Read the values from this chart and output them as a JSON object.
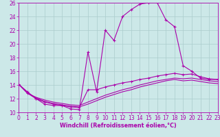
{
  "xlabel": "Windchill (Refroidissement éolien,°C)",
  "bg_color": "#cce8e8",
  "line_color": "#aa00aa",
  "grid_color": "#aacccc",
  "xmin": 0,
  "xmax": 23,
  "ymin": 10,
  "ymax": 26,
  "yticks": [
    10,
    12,
    14,
    16,
    18,
    20,
    22,
    24,
    26
  ],
  "xticks": [
    0,
    1,
    2,
    3,
    4,
    5,
    6,
    7,
    8,
    9,
    10,
    11,
    12,
    13,
    14,
    15,
    16,
    17,
    18,
    19,
    20,
    21,
    22,
    23
  ],
  "series1_x": [
    0,
    1,
    2,
    3,
    4,
    5,
    6,
    7,
    8,
    9,
    10,
    11,
    12,
    13,
    14,
    15,
    16,
    17,
    18,
    19,
    20,
    21,
    22,
    23
  ],
  "series1_y": [
    14.1,
    13.0,
    12.0,
    11.2,
    11.0,
    11.0,
    10.5,
    10.4,
    18.8,
    13.0,
    22.0,
    20.5,
    24.0,
    25.0,
    25.8,
    26.0,
    26.0,
    23.5,
    22.5,
    16.8,
    16.0,
    15.0,
    14.8,
    14.8
  ],
  "series2_x": [
    0,
    1,
    2,
    3,
    4,
    5,
    6,
    7,
    8,
    9,
    10,
    11,
    12,
    13,
    14,
    15,
    16,
    17,
    18,
    19,
    20,
    21,
    22,
    23
  ],
  "series2_y": [
    14.1,
    12.8,
    12.0,
    11.5,
    11.2,
    11.0,
    10.8,
    10.7,
    13.3,
    13.3,
    13.7,
    14.0,
    14.3,
    14.5,
    14.8,
    15.0,
    15.3,
    15.5,
    15.7,
    15.5,
    15.6,
    15.2,
    14.9,
    14.8
  ],
  "series3_x": [
    0,
    1,
    2,
    3,
    4,
    5,
    6,
    7,
    8,
    9,
    10,
    11,
    12,
    13,
    14,
    15,
    16,
    17,
    18,
    19,
    20,
    21,
    22,
    23
  ],
  "series3_y": [
    14.1,
    12.8,
    12.2,
    11.8,
    11.5,
    11.3,
    11.1,
    11.0,
    11.5,
    12.0,
    12.5,
    12.9,
    13.3,
    13.6,
    14.0,
    14.3,
    14.6,
    14.8,
    15.0,
    14.9,
    15.0,
    14.8,
    14.6,
    14.5
  ],
  "series4_x": [
    0,
    1,
    2,
    3,
    4,
    5,
    6,
    7,
    8,
    9,
    10,
    11,
    12,
    13,
    14,
    15,
    16,
    17,
    18,
    19,
    20,
    21,
    22,
    23
  ],
  "series4_y": [
    14.1,
    12.9,
    12.1,
    11.6,
    11.3,
    11.1,
    10.9,
    10.8,
    11.2,
    11.7,
    12.2,
    12.6,
    13.0,
    13.3,
    13.7,
    14.0,
    14.3,
    14.6,
    14.8,
    14.6,
    14.7,
    14.5,
    14.3,
    14.2
  ],
  "tick_fontsize": 5.5,
  "xlabel_fontsize": 5.8
}
